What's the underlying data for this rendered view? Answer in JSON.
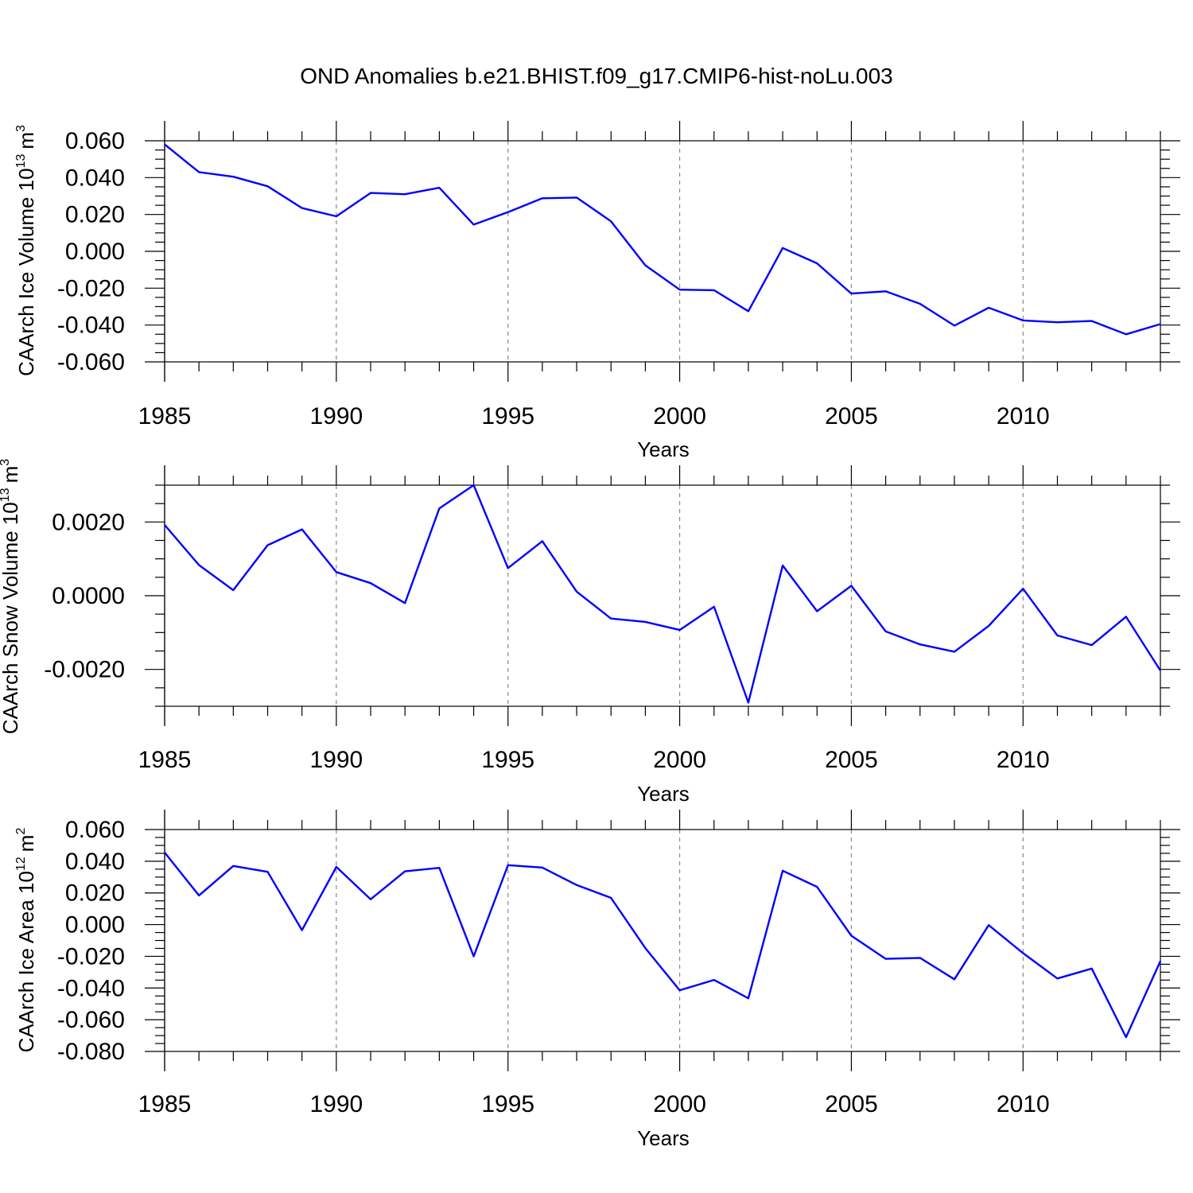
{
  "title": "OND Anomalies b.e21.BHIST.f09_g17.CMIP6-hist-noLu.003",
  "colors": {
    "series": "#0000ff",
    "axis": "#000000",
    "grid": "#888888"
  },
  "chart_data": [
    {
      "type": "line",
      "ylabel_main": "CAArch Ice Volume 10",
      "ylabel_exp": "13",
      "ylabel_unit": "m",
      "ylabel_unit_exp": "3",
      "xlabel": "Years",
      "xlim": [
        1985,
        2014
      ],
      "ylim": [
        -0.06,
        0.06
      ],
      "yticks": [
        0.06,
        0.04,
        0.02,
        0.0,
        -0.02,
        -0.04,
        -0.06
      ],
      "ytick_labels": [
        "0.060",
        "0.040",
        "0.020",
        "0.000",
        "-0.020",
        "-0.040",
        "-0.060"
      ],
      "xticks": [
        1985,
        1990,
        1995,
        2000,
        2005,
        2010
      ],
      "xtick_labels": [
        "1985",
        "1990",
        "1995",
        "2000",
        "2005",
        "2010"
      ],
      "series": [
        {
          "name": "CAArch Ice Volume",
          "x": [
            1985,
            1986,
            1987,
            1988,
            1989,
            1990,
            1991,
            1992,
            1993,
            1994,
            1995,
            1996,
            1997,
            1998,
            1999,
            2000,
            2001,
            2002,
            2003,
            2004,
            2005,
            2006,
            2007,
            2008,
            2009,
            2010,
            2011,
            2012,
            2013,
            2014
          ],
          "values": [
            0.058,
            0.043,
            0.0405,
            0.0353,
            0.0235,
            0.019,
            0.0317,
            0.031,
            0.0345,
            0.0145,
            0.0213,
            0.0288,
            0.0292,
            0.0163,
            -0.0076,
            -0.0208,
            -0.0211,
            -0.0325,
            0.0018,
            -0.0065,
            -0.0229,
            -0.0217,
            -0.0285,
            -0.0403,
            -0.0306,
            -0.0375,
            -0.0385,
            -0.0378,
            -0.045,
            -0.0395
          ]
        }
      ]
    },
    {
      "type": "line",
      "ylabel_main": "CAArch Snow Volume 10",
      "ylabel_exp": "13",
      "ylabel_unit": "m",
      "ylabel_unit_exp": "3",
      "xlabel": "Years",
      "xlim": [
        1985,
        2014
      ],
      "ylim": [
        -0.003,
        0.003
      ],
      "yticks": [
        0.002,
        0.0,
        -0.002
      ],
      "ytick_labels": [
        "0.0020",
        "0.0000",
        "-0.0020"
      ],
      "xticks": [
        1985,
        1990,
        1995,
        2000,
        2005,
        2010
      ],
      "xtick_labels": [
        "1985",
        "1990",
        "1995",
        "2000",
        "2005",
        "2010"
      ],
      "series": [
        {
          "name": "CAArch Snow Volume",
          "x": [
            1985,
            1986,
            1987,
            1988,
            1989,
            1990,
            1991,
            1992,
            1993,
            1994,
            1995,
            1996,
            1997,
            1998,
            1999,
            2000,
            2001,
            2002,
            2003,
            2004,
            2005,
            2006,
            2007,
            2008,
            2009,
            2010,
            2011,
            2012,
            2013,
            2014
          ],
          "values": [
            0.00192,
            0.00083,
            0.00015,
            0.00137,
            0.0018,
            0.00064,
            0.00034,
            -0.0002,
            0.00237,
            0.003,
            0.00075,
            0.00148,
            0.00011,
            -0.00062,
            -0.00071,
            -0.00093,
            -0.0003,
            -0.0029,
            0.00082,
            -0.00042,
            0.00027,
            -0.00097,
            -0.00132,
            -0.00152,
            -0.00082,
            0.00019,
            -0.00108,
            -0.00134,
            -0.00057,
            -0.00203
          ]
        }
      ]
    },
    {
      "type": "line",
      "ylabel_main": "CAArch Ice Area 10",
      "ylabel_exp": "12",
      "ylabel_unit": "m",
      "ylabel_unit_exp": "2",
      "xlabel": "Years",
      "xlim": [
        1985,
        2014
      ],
      "ylim": [
        -0.08,
        0.06
      ],
      "yticks": [
        0.06,
        0.04,
        0.02,
        0.0,
        -0.02,
        -0.04,
        -0.06,
        -0.08
      ],
      "ytick_labels": [
        "0.060",
        "0.040",
        "0.020",
        "0.000",
        "-0.020",
        "-0.040",
        "-0.060",
        "-0.080"
      ],
      "xticks": [
        1985,
        1990,
        1995,
        2000,
        2005,
        2010
      ],
      "xtick_labels": [
        "1985",
        "1990",
        "1995",
        "2000",
        "2005",
        "2010"
      ],
      "series": [
        {
          "name": "CAArch Ice Area",
          "x": [
            1985,
            1986,
            1987,
            1988,
            1989,
            1990,
            1991,
            1992,
            1993,
            1994,
            1995,
            1996,
            1997,
            1998,
            1999,
            2000,
            2001,
            2002,
            2003,
            2004,
            2005,
            2006,
            2007,
            2008,
            2009,
            2010,
            2011,
            2012,
            2013,
            2014
          ],
          "values": [
            0.0455,
            0.0184,
            0.037,
            0.0333,
            -0.0035,
            0.0364,
            0.016,
            0.0336,
            0.0358,
            -0.02,
            0.0375,
            0.036,
            0.025,
            0.0169,
            -0.0148,
            -0.0414,
            -0.0349,
            -0.0465,
            0.034,
            0.0238,
            -0.007,
            -0.0216,
            -0.021,
            -0.0345,
            -0.0003,
            -0.018,
            -0.034,
            -0.0277,
            -0.071,
            -0.023
          ]
        }
      ]
    }
  ]
}
